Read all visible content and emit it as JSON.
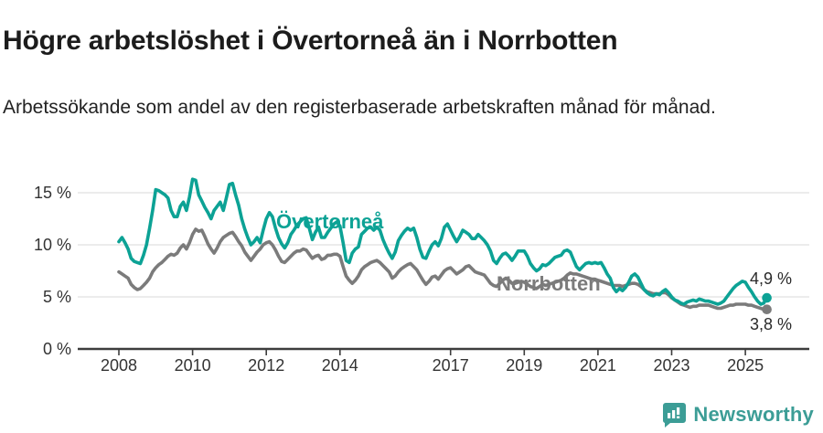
{
  "header": {
    "title": "Högre arbetslöshet i Övertorneå än i Norrbotten",
    "subtitle": "Arbetssökande som andel av den registerbaserade arbetskraften månad för månad."
  },
  "branding": {
    "wordmark": "Newsworthy",
    "logo_icon": "speech-bubble-bar-chart"
  },
  "colors": {
    "overtornea": "#0ca295",
    "norrbotten": "#7b7b7b",
    "brand_teal": "#3c9d96",
    "grid": "#e0e0e0",
    "axis": "#3d3d3d",
    "tick_text": "#333333",
    "value_label_text": "#2a2a2a"
  },
  "chart_data": {
    "type": "line",
    "unit": "%",
    "frequency": "monthly",
    "x_start": "2008-01",
    "x_end": "2025-08",
    "x_tick_years": [
      2008,
      2010,
      2012,
      2014,
      2017,
      2019,
      2021,
      2023,
      2025
    ],
    "x_tick_labels": [
      "2008",
      "2010",
      "2012",
      "2014",
      "2017",
      "2019",
      "2021",
      "2023",
      "2025"
    ],
    "y_ticks": [
      0,
      5,
      10,
      15
    ],
    "y_tick_labels": [
      "0 %",
      "5 %",
      "10 %",
      "15 %"
    ],
    "ylim": [
      0,
      17
    ],
    "grid": "horizontal-only",
    "legend": "inline-series-labels",
    "series": [
      {
        "name": "Övertorneå",
        "color": "#0ca295",
        "end_label": "4,9 %",
        "end_value": 4.9,
        "values": [
          10.3,
          10.7,
          10.2,
          9.6,
          8.7,
          8.4,
          8.3,
          8.2,
          9.0,
          10.0,
          11.6,
          13.3,
          15.3,
          15.2,
          15.0,
          14.8,
          14.5,
          13.3,
          12.7,
          12.7,
          13.7,
          14.1,
          13.3,
          14.6,
          16.3,
          16.2,
          14.8,
          14.2,
          13.6,
          13.1,
          12.5,
          13.3,
          13.7,
          14.1,
          13.3,
          14.5,
          15.8,
          15.9,
          14.8,
          13.8,
          12.5,
          11.5,
          10.7,
          10.0,
          10.3,
          10.7,
          10.2,
          11.4,
          12.5,
          13.1,
          12.7,
          11.6,
          10.7,
          10.1,
          9.7,
          10.2,
          11.0,
          11.4,
          11.9,
          12.2,
          12.5,
          12.6,
          11.6,
          10.5,
          11.2,
          11.7,
          10.7,
          10.7,
          11.2,
          11.6,
          12.0,
          12.2,
          11.8,
          10.2,
          8.5,
          8.3,
          9.2,
          9.6,
          9.8,
          11.0,
          11.3,
          11.6,
          11.7,
          11.4,
          11.7,
          11.4,
          10.5,
          9.8,
          9.2,
          8.7,
          9.3,
          10.4,
          10.9,
          11.3,
          11.6,
          11.4,
          11.6,
          10.7,
          9.6,
          8.8,
          8.7,
          9.4,
          10.0,
          10.3,
          9.9,
          10.6,
          11.7,
          12.0,
          11.4,
          10.8,
          10.3,
          10.8,
          11.4,
          11.2,
          11.0,
          10.6,
          10.6,
          11.0,
          10.7,
          10.4,
          10.0,
          9.4,
          8.5,
          8.2,
          8.7,
          9.1,
          9.2,
          8.9,
          8.5,
          8.9,
          9.4,
          9.4,
          9.4,
          8.9,
          8.2,
          7.8,
          7.5,
          7.7,
          8.1,
          8.0,
          8.2,
          8.5,
          8.8,
          8.9,
          9.0,
          9.4,
          9.5,
          9.3,
          8.6,
          7.9,
          7.6,
          7.9,
          8.2,
          8.3,
          8.2,
          8.3,
          8.2,
          8.3,
          7.8,
          7.2,
          6.8,
          5.9,
          5.5,
          5.8,
          5.6,
          5.9,
          6.4,
          7.0,
          7.2,
          6.9,
          6.3,
          5.7,
          5.4,
          5.2,
          5.1,
          5.3,
          5.2,
          5.5,
          5.7,
          5.4,
          5.0,
          4.7,
          4.6,
          4.4,
          4.3,
          4.5,
          4.6,
          4.7,
          4.6,
          4.8,
          4.7,
          4.6,
          4.6,
          4.5,
          4.4,
          4.3,
          4.4,
          4.6,
          5.0,
          5.4,
          5.8,
          6.1,
          6.3,
          6.5,
          6.4,
          5.9,
          5.5,
          5.0,
          4.6,
          4.3,
          4.4,
          4.9
        ]
      },
      {
        "name": "Norrbotten",
        "color": "#7b7b7b",
        "end_label": "3,8 %",
        "end_value": 3.8,
        "values": [
          7.4,
          7.2,
          7.0,
          6.8,
          6.2,
          5.9,
          5.7,
          5.8,
          6.1,
          6.4,
          6.8,
          7.4,
          7.8,
          8.1,
          8.3,
          8.6,
          8.9,
          9.1,
          9.0,
          9.2,
          9.7,
          10.0,
          9.6,
          10.2,
          11.0,
          11.5,
          11.3,
          11.4,
          10.8,
          10.1,
          9.6,
          9.2,
          9.7,
          10.3,
          10.7,
          10.9,
          11.1,
          11.2,
          10.8,
          10.3,
          9.9,
          9.3,
          8.9,
          8.5,
          8.9,
          9.3,
          9.6,
          10.0,
          10.2,
          10.3,
          10.0,
          9.5,
          8.9,
          8.4,
          8.3,
          8.6,
          8.9,
          9.2,
          9.4,
          9.4,
          9.6,
          9.5,
          9.1,
          8.7,
          8.9,
          9.0,
          8.6,
          8.7,
          9.0,
          9.0,
          9.1,
          9.1,
          8.9,
          7.9,
          7.0,
          6.6,
          6.3,
          6.6,
          7.0,
          7.6,
          7.9,
          8.1,
          8.3,
          8.4,
          8.5,
          8.3,
          8.0,
          7.7,
          7.4,
          6.8,
          7.0,
          7.4,
          7.7,
          7.9,
          8.1,
          8.2,
          7.9,
          7.6,
          7.1,
          6.6,
          6.2,
          6.5,
          6.9,
          7.0,
          6.7,
          7.1,
          7.5,
          7.7,
          7.8,
          7.5,
          7.2,
          7.4,
          7.6,
          7.9,
          8.0,
          7.7,
          7.4,
          7.3,
          7.2,
          7.1,
          6.7,
          6.3,
          6.1,
          6.0,
          6.3,
          6.6,
          6.8,
          6.6,
          6.3,
          6.3,
          6.4,
          6.5,
          6.4,
          6.2,
          6.0,
          5.9,
          5.8,
          6.0,
          6.2,
          6.1,
          6.2,
          6.3,
          6.4,
          6.5,
          6.6,
          6.8,
          7.1,
          7.3,
          7.2,
          7.2,
          7.1,
          7.0,
          6.9,
          6.8,
          6.7,
          6.7,
          6.6,
          6.5,
          6.4,
          6.3,
          6.2,
          6.1,
          6.1,
          6.1,
          6.0,
          6.1,
          6.2,
          6.3,
          6.3,
          6.2,
          6.0,
          5.7,
          5.5,
          5.4,
          5.3,
          5.3,
          5.3,
          5.4,
          5.4,
          5.2,
          4.9,
          4.7,
          4.5,
          4.3,
          4.2,
          4.1,
          4.0,
          4.1,
          4.1,
          4.2,
          4.2,
          4.2,
          4.2,
          4.1,
          4.0,
          3.9,
          3.9,
          4.0,
          4.1,
          4.2,
          4.2,
          4.3,
          4.3,
          4.3,
          4.3,
          4.2,
          4.2,
          4.1,
          4.0,
          3.9,
          3.8,
          3.8
        ]
      }
    ]
  }
}
